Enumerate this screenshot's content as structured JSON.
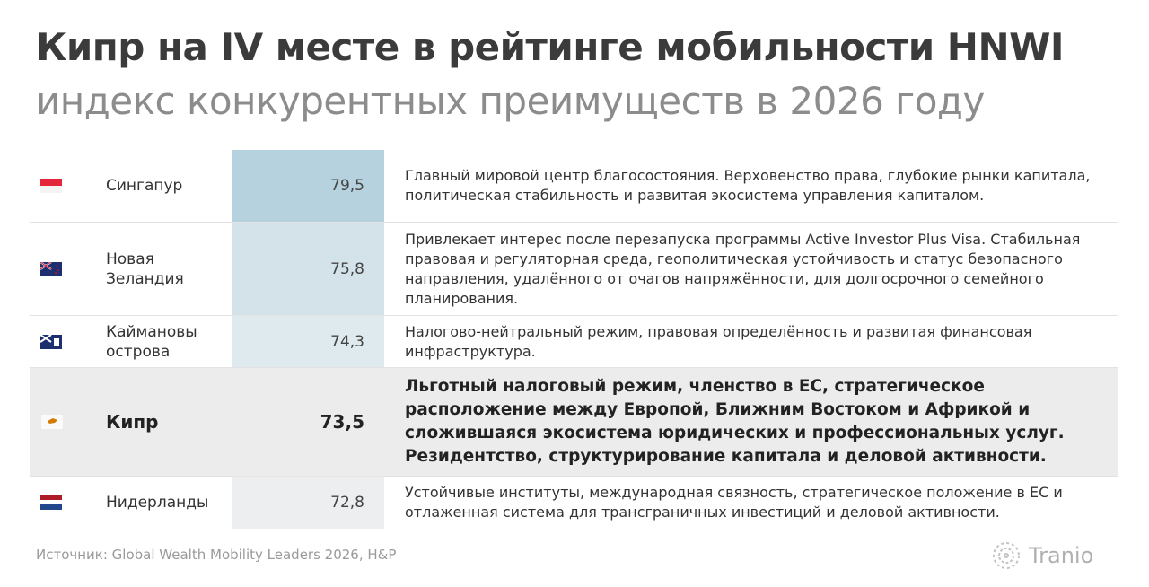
{
  "header": {
    "title": "Кипр на IV месте в рейтинге мобильности HNWI",
    "subtitle": "индекс конкурентных преимуществ в 2026 году"
  },
  "table": {
    "rows": [
      [
        "Сингапур",
        "79,5",
        "Главный мировой центр благосостояния. Верховенство права, глубокие рынки капитала, политическая стабильность и развитая экосистема управления капиталом."
      ],
      [
        "Новая Зеландия",
        "75,8",
        "Привлекает интерес после перезапуска программы Active Investor Plus Visa. Стабильная правовая и регуляторная среда, геополитическая устойчивость и статус безопасного направления, удалённого от очагов напряжённости, для долгосрочного семейного планирования."
      ],
      [
        "Каймановы острова",
        "74,3",
        "Налогово-нейтральный режим, правовая определённость и развитая финансовая инфраструктура."
      ],
      [
        "Кипр",
        "73,5",
        "Льготный налоговый режим, членство в ЕС, стратегическое расположение между Европой, Ближним Востоком и Африкой и сложившаяся экосистема юридических и профессиональных услуг. Резидентство, структурирование капитала и деловой активности."
      ],
      [
        "Нидерланды",
        "72,8",
        "Устойчивые институты, международная связность, стратегическое положение в ЕС и отлаженная система для трансграничных инвестиций и деловой активности."
      ]
    ]
  },
  "footer": {
    "source": "Источник: Global Wealth Mobility Leaders 2026, H&P",
    "logo": "Tranio"
  }
}
